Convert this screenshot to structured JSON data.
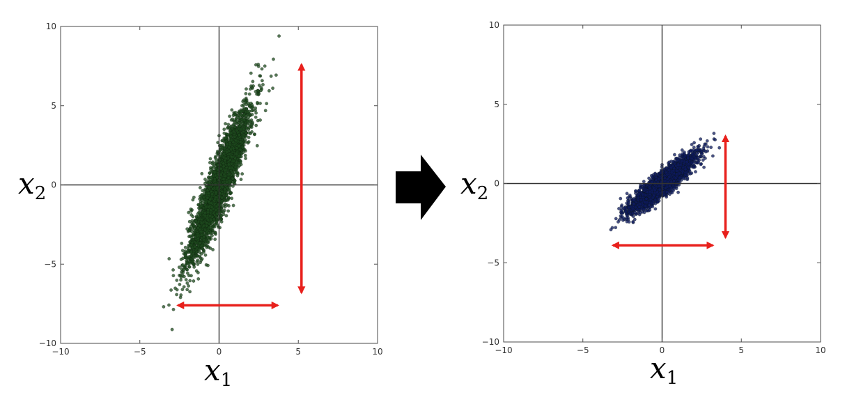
{
  "figure": {
    "arrow_color": "#000000",
    "annotation_color": "#e8201c"
  },
  "chart_data": [
    {
      "type": "scatter",
      "title": "",
      "xlabel": "x",
      "xlabel_sub": "1",
      "ylabel": "x",
      "ylabel_sub": "2",
      "xlim": [
        -10,
        10
      ],
      "ylim": [
        -10,
        10
      ],
      "xticks": [
        -10,
        -5,
        0,
        5,
        10
      ],
      "yticks": [
        -10,
        -5,
        0,
        5,
        10
      ],
      "xtick_labels": [
        "−10",
        "−5",
        "0",
        "5",
        "10"
      ],
      "ytick_labels": [
        "−10",
        "−5",
        "0",
        "5",
        "10"
      ],
      "grid": false,
      "zero_lines": true,
      "point_color": "#1d4a1d",
      "point_count": 3000,
      "distribution": {
        "mean": [
          0,
          0
        ],
        "sd_x1": 1.0,
        "sd_x2": 2.5,
        "correlation": 0.92,
        "slope_x2_on_x1": 2.3
      },
      "annotations": {
        "x1_extent": [
          -2.6,
          3.7
        ],
        "x2_extent": [
          -6.8,
          7.6
        ]
      }
    },
    {
      "type": "scatter",
      "title": "",
      "xlabel": "x",
      "xlabel_sub": "1",
      "ylabel": "x",
      "ylabel_sub": "2",
      "xlim": [
        -10,
        10
      ],
      "ylim": [
        -10,
        10
      ],
      "xticks": [
        -10,
        -5,
        0,
        5,
        10
      ],
      "yticks": [
        -10,
        -5,
        0,
        5,
        10
      ],
      "xtick_labels": [
        "−10",
        "−5",
        "0",
        "5",
        "10"
      ],
      "ytick_labels": [
        "−10",
        "−5",
        "0",
        "5",
        "10"
      ],
      "grid": false,
      "zero_lines": true,
      "point_color": "#0d1a5e",
      "point_count": 3000,
      "distribution": {
        "mean": [
          0,
          0
        ],
        "sd_x1": 1.0,
        "sd_x2": 0.85,
        "correlation": 0.9,
        "slope_x2_on_x1": 0.75
      },
      "annotations": {
        "x1_extent": [
          -3.1,
          3.2
        ],
        "x2_extent": [
          -3.4,
          3.0
        ]
      }
    }
  ]
}
